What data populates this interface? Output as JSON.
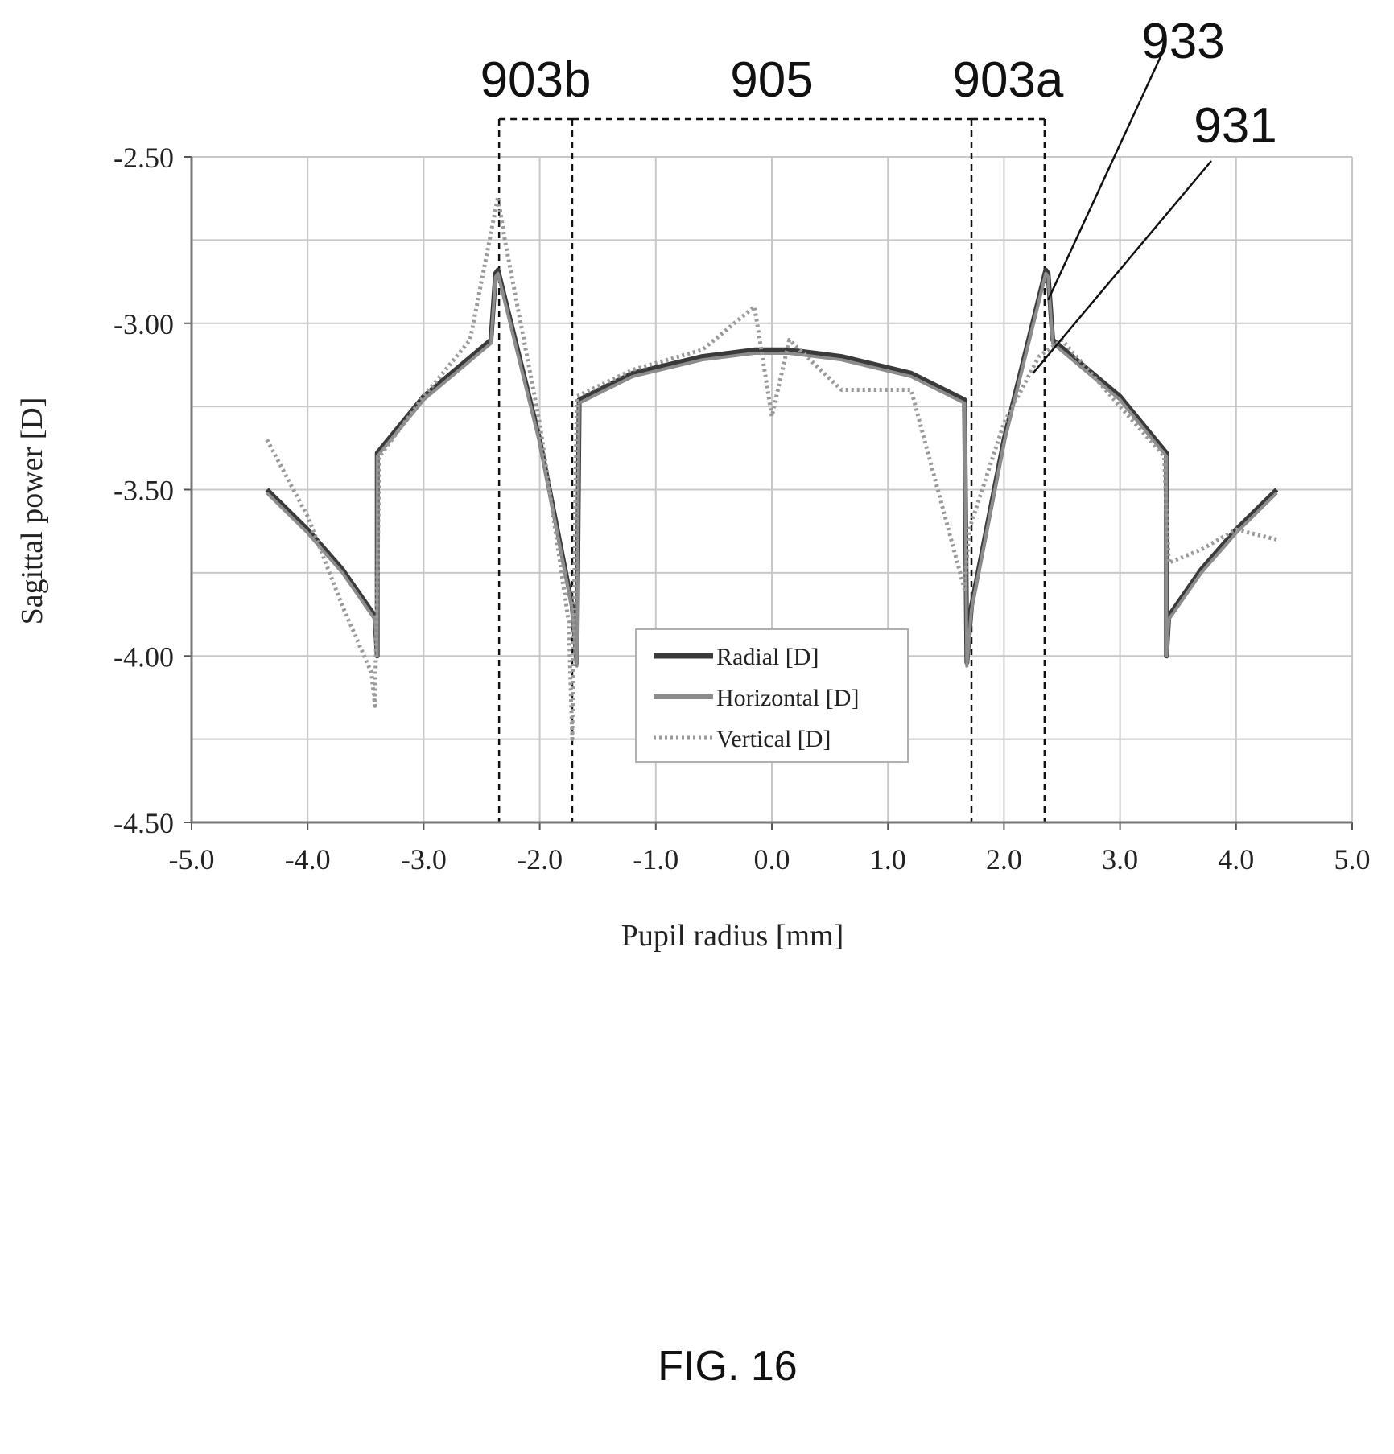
{
  "chart_data": {
    "type": "line",
    "title": "",
    "xlabel": "Pupil radius [mm]",
    "ylabel": "Sagittal power [D]",
    "xlim": [
      -5.0,
      5.0
    ],
    "ylim": [
      -4.5,
      -2.5
    ],
    "x_ticks": [
      "-5.0",
      "-4.0",
      "-3.0",
      "-2.0",
      "-1.0",
      "0.0",
      "1.0",
      "2.0",
      "3.0",
      "4.0",
      "5.0"
    ],
    "y_ticks": [
      "-2.50",
      "-3.00",
      "-3.50",
      "-4.00",
      "-4.50"
    ],
    "grid": true,
    "legend_position": "center-bottom",
    "series": [
      {
        "name": "Radial [D]",
        "style": "solid",
        "color": "#3a3a3a",
        "x": [
          -4.35,
          -4.0,
          -3.7,
          -3.42,
          -3.4,
          -3.4,
          -3.0,
          -2.42,
          -2.38,
          -2.36,
          -2.0,
          -1.72,
          -1.68,
          -1.66,
          -1.2,
          -0.6,
          -0.15,
          0.0,
          0.15,
          0.6,
          1.2,
          1.66,
          1.68,
          1.72,
          2.0,
          2.36,
          2.38,
          2.42,
          3.0,
          3.4,
          3.4,
          3.42,
          3.7,
          4.0,
          4.35
        ],
        "y": [
          -3.5,
          -3.62,
          -3.74,
          -3.88,
          -4.0,
          -3.39,
          -3.22,
          -3.05,
          -2.85,
          -2.84,
          -3.35,
          -3.85,
          -4.02,
          -3.23,
          -3.15,
          -3.1,
          -3.08,
          -3.08,
          -3.08,
          -3.1,
          -3.15,
          -3.23,
          -4.02,
          -3.85,
          -3.35,
          -2.84,
          -2.85,
          -3.05,
          -3.22,
          -3.39,
          -4.0,
          -3.88,
          -3.74,
          -3.62,
          -3.5
        ]
      },
      {
        "name": "Horizontal [D]",
        "style": "solid",
        "color": "#8c8c8c",
        "x": [
          -4.35,
          -4.0,
          -3.7,
          -3.42,
          -3.4,
          -3.4,
          -3.0,
          -2.42,
          -2.38,
          -2.36,
          -2.0,
          -1.72,
          -1.68,
          -1.66,
          -1.2,
          -0.6,
          -0.15,
          0.0,
          0.15,
          0.6,
          1.2,
          1.66,
          1.68,
          1.72,
          2.0,
          2.36,
          2.38,
          2.42,
          3.0,
          3.4,
          3.4,
          3.42,
          3.7,
          4.0,
          4.35
        ],
        "y": [
          -3.51,
          -3.63,
          -3.75,
          -3.89,
          -4.0,
          -3.4,
          -3.23,
          -3.06,
          -2.86,
          -2.85,
          -3.36,
          -3.86,
          -4.03,
          -3.24,
          -3.16,
          -3.11,
          -3.09,
          -3.09,
          -3.09,
          -3.11,
          -3.16,
          -3.24,
          -4.03,
          -3.86,
          -3.36,
          -2.85,
          -2.86,
          -3.06,
          -3.23,
          -3.4,
          -4.0,
          -3.89,
          -3.75,
          -3.63,
          -3.51
        ]
      },
      {
        "name": "Vertical [D]",
        "style": "dotted",
        "color": "#9a9a9a",
        "x": [
          -4.35,
          -4.0,
          -3.7,
          -3.45,
          -3.42,
          -3.38,
          -3.0,
          -2.6,
          -2.36,
          -2.3,
          -2.0,
          -1.75,
          -1.72,
          -1.68,
          -1.2,
          -0.6,
          -0.15,
          0.0,
          0.15,
          0.6,
          1.2,
          1.66,
          1.7,
          2.0,
          2.3,
          2.5,
          3.0,
          3.38,
          3.42,
          3.7,
          4.0,
          4.35
        ],
        "y": [
          -3.35,
          -3.58,
          -3.85,
          -4.05,
          -4.15,
          -3.4,
          -3.22,
          -3.05,
          -2.62,
          -2.75,
          -3.3,
          -3.9,
          -4.25,
          -3.22,
          -3.14,
          -3.08,
          -2.95,
          -3.28,
          -3.05,
          -3.2,
          -3.2,
          -3.8,
          -3.62,
          -3.3,
          -3.1,
          -3.05,
          -3.25,
          -3.4,
          -3.72,
          -3.68,
          -3.62,
          -3.65
        ]
      }
    ],
    "annotations": [
      {
        "label": "903b",
        "from_x": -2.35,
        "to_x": -1.72
      },
      {
        "label": "905",
        "from_x": -1.72,
        "to_x": 1.72
      },
      {
        "label": "903a",
        "from_x": 1.72,
        "to_x": 2.35
      },
      {
        "label": "933",
        "target_x": 2.38,
        "target_y": -2.93
      },
      {
        "label": "931",
        "target_x": 2.25,
        "target_y": -3.15
      }
    ],
    "caption": "FIG. 16"
  }
}
